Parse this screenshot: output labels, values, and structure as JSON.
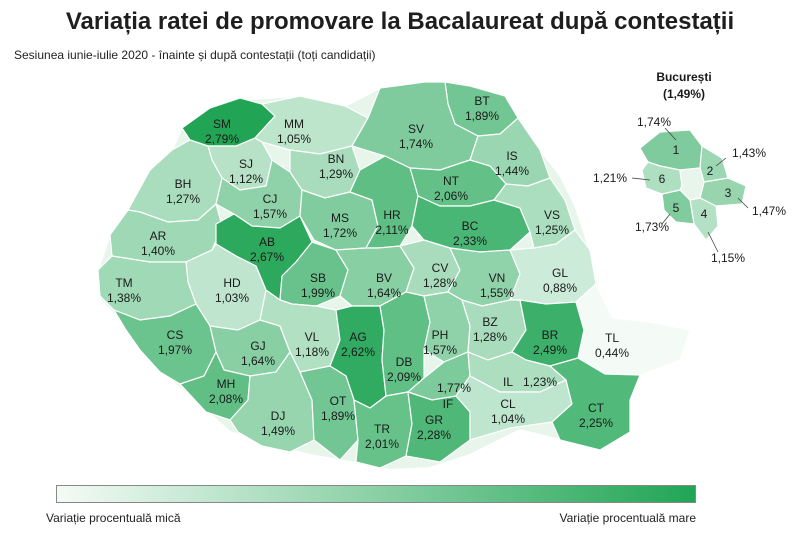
{
  "title": "Variația ratei de promovare la Bacalaureat după contestații",
  "subtitle": "Sesiunea iunie-iulie 2020 - înainte și după contestații (toți candidații)",
  "colors": {
    "low": "#f4fbf6",
    "high": "#21a555",
    "border": "#ffffff"
  },
  "regions": [
    {
      "code": "SM",
      "value": "2,79%",
      "v": 2.79
    },
    {
      "code": "MM",
      "value": "1,05%",
      "v": 1.05
    },
    {
      "code": "BT",
      "value": "1,89%",
      "v": 1.89
    },
    {
      "code": "SV",
      "value": "1,74%",
      "v": 1.74
    },
    {
      "code": "SJ",
      "value": "1,12%",
      "v": 1.12
    },
    {
      "code": "BN",
      "value": "1,29%",
      "v": 1.29
    },
    {
      "code": "IS",
      "value": "1,44%",
      "v": 1.44
    },
    {
      "code": "BH",
      "value": "1,27%",
      "v": 1.27
    },
    {
      "code": "CJ",
      "value": "1,57%",
      "v": 1.57
    },
    {
      "code": "NT",
      "value": "2,06%",
      "v": 2.06
    },
    {
      "code": "MS",
      "value": "1,72%",
      "v": 1.72
    },
    {
      "code": "HR",
      "value": "2,11%",
      "v": 2.11
    },
    {
      "code": "BC",
      "value": "2,33%",
      "v": 2.33
    },
    {
      "code": "VS",
      "value": "1,25%",
      "v": 1.25
    },
    {
      "code": "AR",
      "value": "1,40%",
      "v": 1.4
    },
    {
      "code": "AB",
      "value": "2,67%",
      "v": 2.67
    },
    {
      "code": "HD",
      "value": "1,03%",
      "v": 1.03
    },
    {
      "code": "SB",
      "value": "1,99%",
      "v": 1.99
    },
    {
      "code": "BV",
      "value": "1,64%",
      "v": 1.64
    },
    {
      "code": "CV",
      "value": "1,28%",
      "v": 1.28
    },
    {
      "code": "VN",
      "value": "1,55%",
      "v": 1.55
    },
    {
      "code": "GL",
      "value": "0,88%",
      "v": 0.88
    },
    {
      "code": "TM",
      "value": "1,38%",
      "v": 1.38
    },
    {
      "code": "CS",
      "value": "1,97%",
      "v": 1.97
    },
    {
      "code": "GJ",
      "value": "1,64%",
      "v": 1.64
    },
    {
      "code": "VL",
      "value": "1,18%",
      "v": 1.18
    },
    {
      "code": "AG",
      "value": "2,62%",
      "v": 2.62
    },
    {
      "code": "DB",
      "value": "2,09%",
      "v": 2.09
    },
    {
      "code": "PH",
      "value": "1,57%",
      "v": 1.57
    },
    {
      "code": "BZ",
      "value": "1,28%",
      "v": 1.28
    },
    {
      "code": "BR",
      "value": "2,49%",
      "v": 2.49
    },
    {
      "code": "TL",
      "value": "0,44%",
      "v": 0.44
    },
    {
      "code": "MH",
      "value": "2,08%",
      "v": 2.08
    },
    {
      "code": "DJ",
      "value": "1,49%",
      "v": 1.49
    },
    {
      "code": "OT",
      "value": "1,89%",
      "v": 1.89
    },
    {
      "code": "TR",
      "value": "2,01%",
      "v": 2.01
    },
    {
      "code": "IF",
      "value": "1,77%",
      "v": 1.77
    },
    {
      "code": "IL",
      "value": "1,23%",
      "v": 1.23
    },
    {
      "code": "GR",
      "value": "2,28%",
      "v": 2.28
    },
    {
      "code": "CL",
      "value": "1,04%",
      "v": 1.04
    },
    {
      "code": "CT",
      "value": "2,25%",
      "v": 2.25
    }
  ],
  "bucharest": {
    "name": "București",
    "total": "(1,49%)",
    "sectors": [
      {
        "num": "1",
        "value": "1,74%",
        "v": 1.74
      },
      {
        "num": "2",
        "value": "1,43%",
        "v": 1.43
      },
      {
        "num": "3",
        "value": "1,47%",
        "v": 1.47
      },
      {
        "num": "4",
        "value": "1,15%",
        "v": 1.15
      },
      {
        "num": "5",
        "value": "1,73%",
        "v": 1.73
      },
      {
        "num": "6",
        "value": "1,21%",
        "v": 1.21
      }
    ]
  },
  "legend": {
    "low_label": "Variație procentuală mică",
    "high_label": "Variație procentuală mare"
  }
}
